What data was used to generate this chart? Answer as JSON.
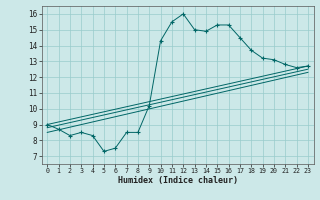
{
  "xlabel": "Humidex (Indice chaleur)",
  "bg_color": "#cce8e8",
  "grid_color": "#99cccc",
  "line_color": "#006666",
  "xlim": [
    -0.5,
    23.5
  ],
  "ylim": [
    6.5,
    16.5
  ],
  "xticks": [
    0,
    1,
    2,
    3,
    4,
    5,
    6,
    7,
    8,
    9,
    10,
    11,
    12,
    13,
    14,
    15,
    16,
    17,
    18,
    19,
    20,
    21,
    22,
    23
  ],
  "yticks": [
    7,
    8,
    9,
    10,
    11,
    12,
    13,
    14,
    15,
    16
  ],
  "main_x": [
    0,
    1,
    2,
    3,
    4,
    5,
    6,
    7,
    8,
    9,
    10,
    11,
    12,
    13,
    14,
    15,
    16,
    17,
    18,
    19,
    20,
    21,
    22,
    23
  ],
  "main_y": [
    9.0,
    8.7,
    8.3,
    8.5,
    8.3,
    7.3,
    7.5,
    8.5,
    8.5,
    10.2,
    14.3,
    15.5,
    16.0,
    15.0,
    14.9,
    15.3,
    15.3,
    14.5,
    13.7,
    13.2,
    13.1,
    12.8,
    12.6,
    12.7
  ],
  "line2_x": [
    0,
    23
  ],
  "line2_y": [
    9.0,
    12.7
  ],
  "line3_x": [
    0,
    23
  ],
  "line3_y": [
    8.8,
    12.5
  ],
  "line4_x": [
    0,
    23
  ],
  "line4_y": [
    8.5,
    12.3
  ]
}
